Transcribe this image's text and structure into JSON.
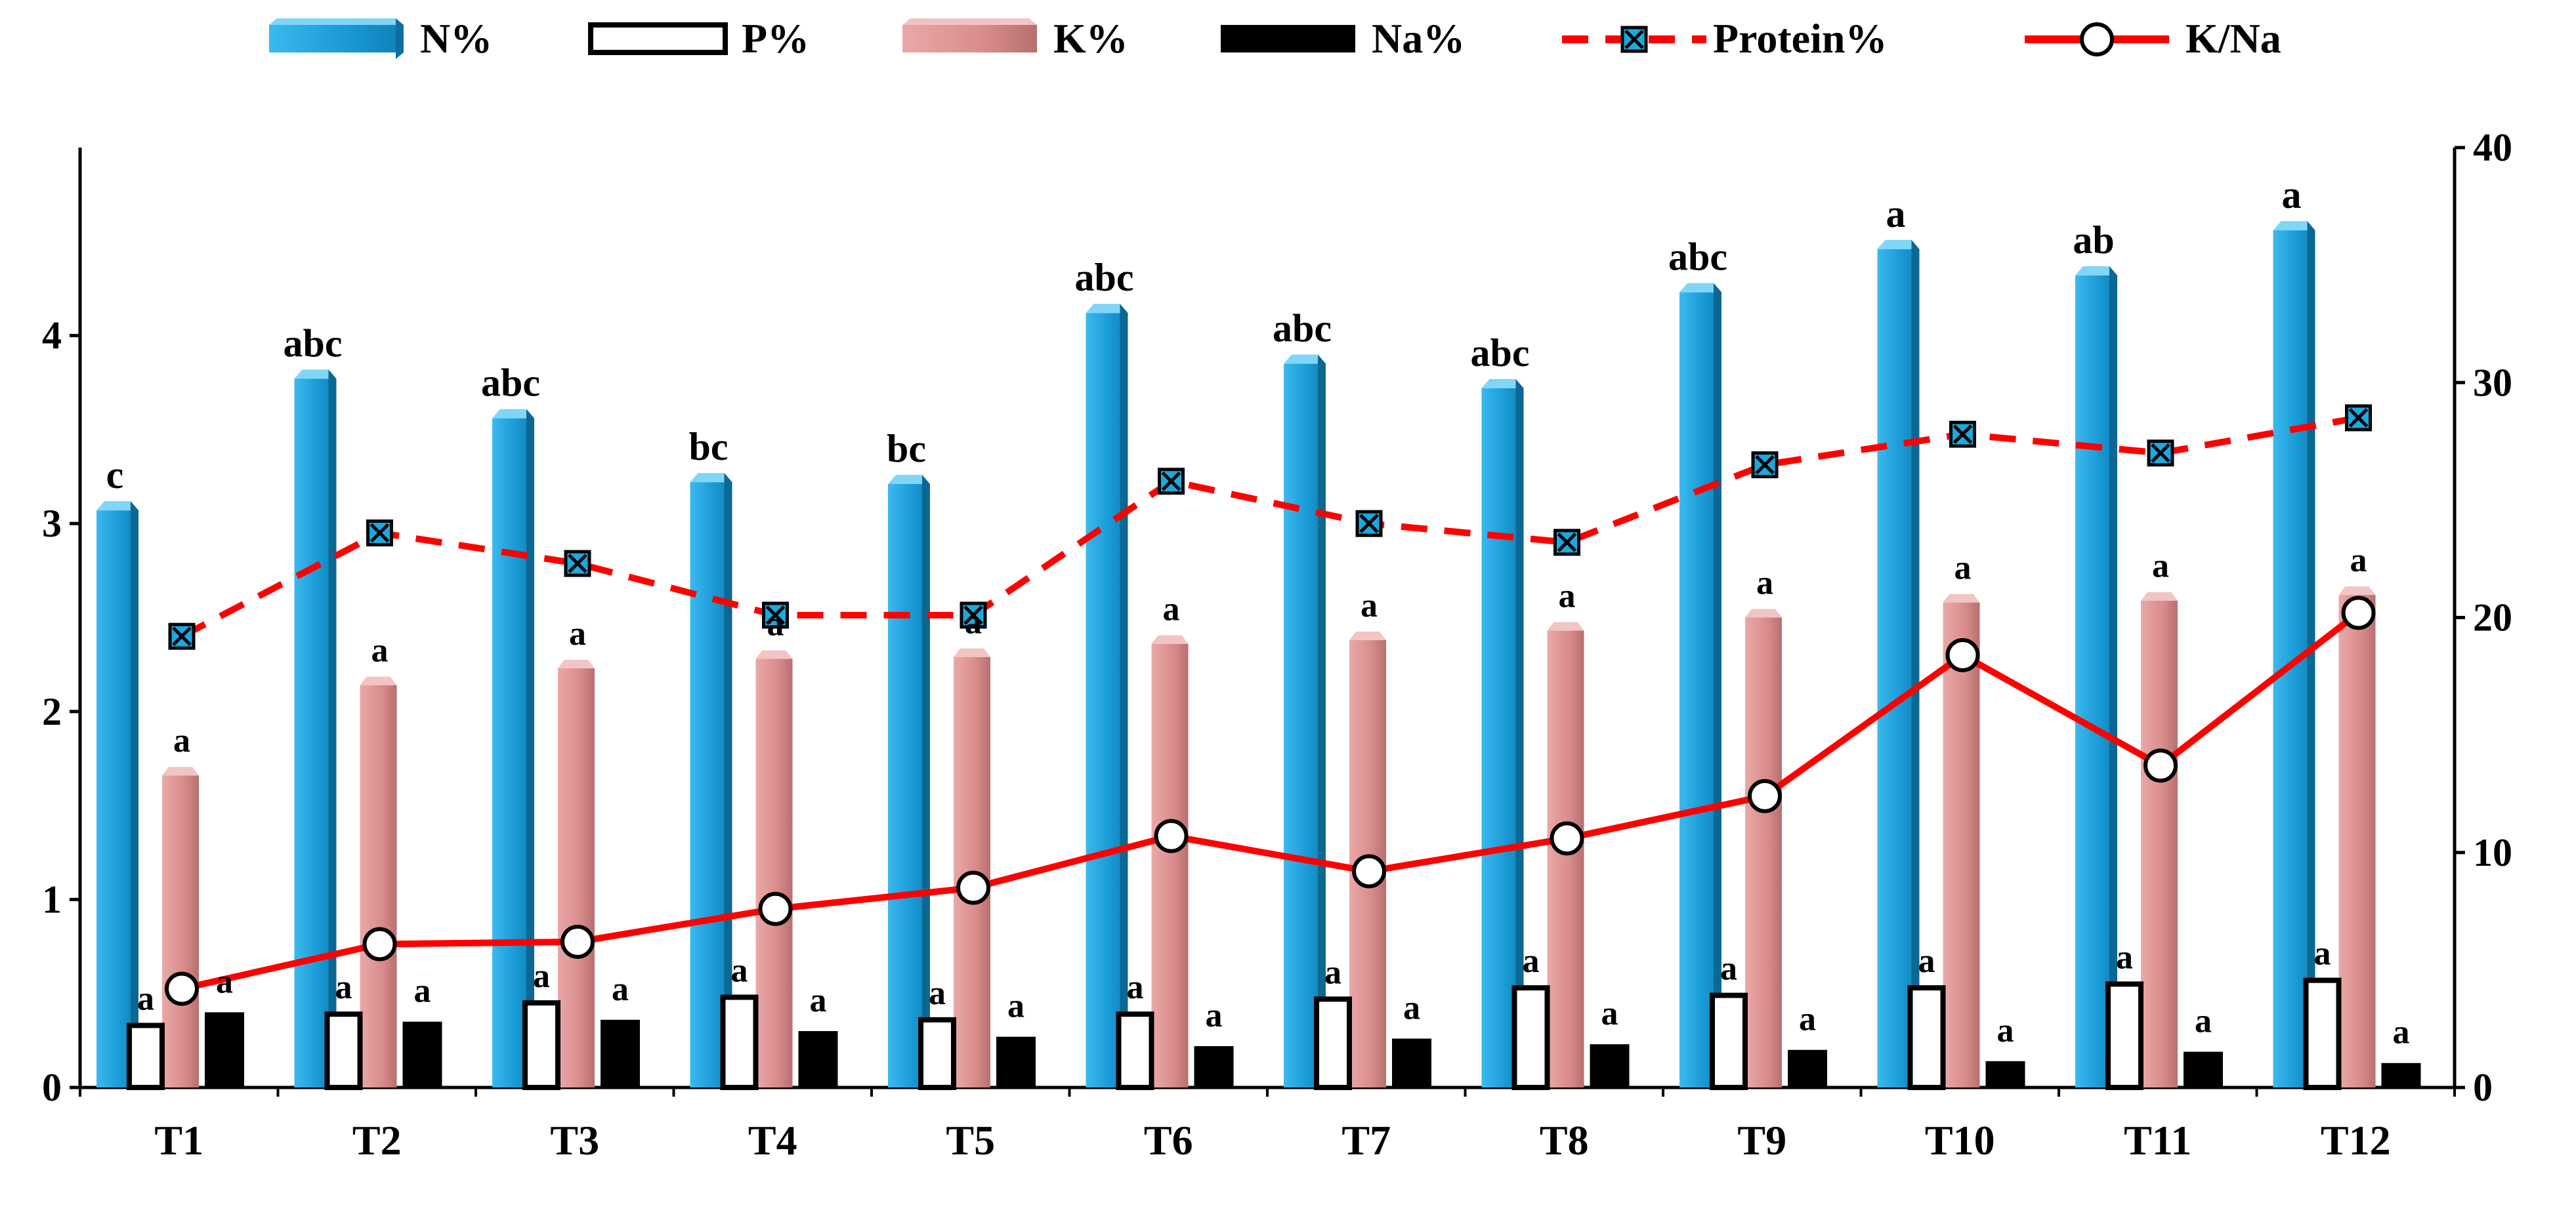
{
  "chart_data": {
    "type": "bar",
    "categories": [
      "T1",
      "T2",
      "T3",
      "T4",
      "T5",
      "T6",
      "T7",
      "T8",
      "T9",
      "T10",
      "T11",
      "T12"
    ],
    "left_axis": {
      "ylim": [
        0,
        5
      ],
      "ticks": [
        "0",
        "1",
        "2",
        "3",
        "4"
      ]
    },
    "right_axis": {
      "ylim": [
        0,
        40
      ],
      "ticks": [
        "0",
        "10",
        "20",
        "30",
        "40"
      ]
    },
    "series": [
      {
        "key": "n",
        "name": "N%",
        "kind": "bar",
        "axis": "left",
        "color": "#1a9bd7",
        "values": [
          3.07,
          3.77,
          3.56,
          3.22,
          3.21,
          4.12,
          3.85,
          3.72,
          4.23,
          4.46,
          4.32,
          4.56
        ],
        "letters": [
          "c",
          "abc",
          "abc",
          "bc",
          "bc",
          "abc",
          "abc",
          "abc",
          "abc",
          "a",
          "ab",
          "a"
        ]
      },
      {
        "key": "p",
        "name": "P%",
        "kind": "bar",
        "axis": "left",
        "color": "#ffffff",
        "values": [
          0.33,
          0.39,
          0.45,
          0.48,
          0.36,
          0.39,
          0.47,
          0.53,
          0.49,
          0.53,
          0.55,
          0.57
        ],
        "letters": [
          "a",
          "a",
          "a",
          "a",
          "a",
          "a",
          "a",
          "a",
          "a",
          "a",
          "a",
          "a"
        ]
      },
      {
        "key": "k",
        "name": "K%",
        "kind": "bar",
        "axis": "left",
        "color": "#d98c8c",
        "values": [
          1.66,
          2.14,
          2.23,
          2.28,
          2.29,
          2.36,
          2.38,
          2.43,
          2.5,
          2.58,
          2.59,
          2.62
        ],
        "letters": [
          "a",
          "a",
          "a",
          "a",
          "a",
          "a",
          "a",
          "a",
          "a",
          "a",
          "a",
          "a"
        ]
      },
      {
        "key": "na",
        "name": "Na%",
        "kind": "bar",
        "axis": "left",
        "color": "#000000",
        "values": [
          0.4,
          0.35,
          0.36,
          0.3,
          0.27,
          0.22,
          0.26,
          0.23,
          0.2,
          0.14,
          0.19,
          0.13
        ],
        "letters": [
          "a",
          "a",
          "a",
          "a",
          "a",
          "a",
          "a",
          "a",
          "a",
          "a",
          "a",
          "a"
        ]
      },
      {
        "key": "protein",
        "name": "Protein%",
        "kind": "line",
        "style": "dashed",
        "axis": "right",
        "color": "#ff0000",
        "values": [
          19.2,
          23.6,
          22.3,
          20.1,
          20.1,
          25.8,
          24.0,
          23.2,
          26.5,
          27.8,
          27.0,
          28.5
        ]
      },
      {
        "key": "kna",
        "name": "K/Na",
        "kind": "line",
        "style": "solid",
        "axis": "right",
        "color": "#ff0000",
        "values": [
          4.2,
          6.1,
          6.2,
          7.6,
          8.5,
          10.7,
          9.2,
          10.6,
          12.4,
          18.4,
          13.7,
          20.2
        ]
      }
    ],
    "legend": [
      "N%",
      "P%",
      "K%",
      "Na%",
      "Protein%",
      "K/Na"
    ],
    "legend_position": "top"
  }
}
